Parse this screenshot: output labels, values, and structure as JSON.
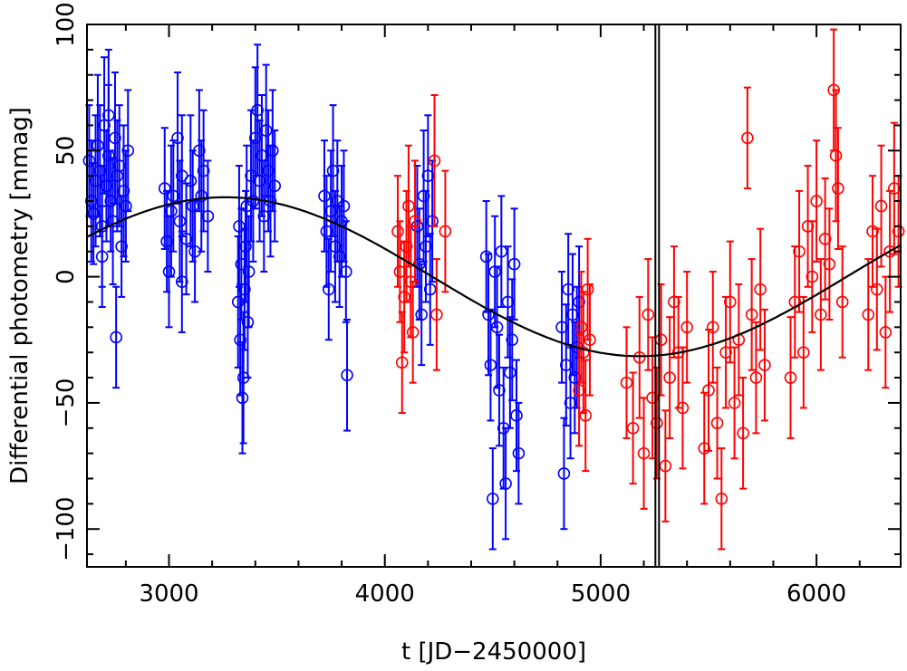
{
  "chart_data": {
    "type": "scatter",
    "title": "",
    "xlabel": "t [JD−2450000]",
    "ylabel": "Differential photometry [mmag]",
    "xlim": [
      2620,
      6390
    ],
    "ylim": [
      -115,
      100
    ],
    "x_ticks": [
      3000,
      4000,
      5000,
      6000
    ],
    "x_tick_labels": [
      "3000",
      "4000",
      "5000",
      "6000"
    ],
    "y_ticks": [
      -100,
      -50,
      0,
      50,
      100
    ],
    "y_tick_labels": [
      "−100",
      "−50",
      "0",
      "50",
      "100"
    ],
    "grid": false,
    "legend": "none",
    "colors": {
      "blue": "#0000ff",
      "red": "#ff0000",
      "fit": "#000000",
      "axes": "#000000"
    },
    "vertical_line_x": 5262,
    "fit_curve": {
      "description_points_x": [
        2620,
        2900,
        3260,
        3600,
        4000,
        4400,
        4800,
        5180,
        5500,
        5900,
        6390
      ],
      "description_points_y": [
        14,
        26,
        31,
        27,
        11,
        -9,
        -26,
        -31,
        -25,
        -8,
        14
      ]
    },
    "series": [
      {
        "color": "#0000ff",
        "points": [
          [
            2630,
            46,
            22
          ],
          [
            2640,
            30,
            24
          ],
          [
            2650,
            25,
            20
          ],
          [
            2660,
            38,
            26
          ],
          [
            2670,
            52,
            28
          ],
          [
            2680,
            42,
            26
          ],
          [
            2690,
            20,
            24
          ],
          [
            2700,
            60,
            27
          ],
          [
            2710,
            36,
            22
          ],
          [
            2720,
            48,
            28
          ],
          [
            2730,
            30,
            20
          ],
          [
            2740,
            22,
            25
          ],
          [
            2750,
            55,
            26
          ],
          [
            2760,
            40,
            22
          ],
          [
            2770,
            44,
            24
          ],
          [
            2780,
            12,
            20
          ],
          [
            2790,
            34,
            26
          ],
          [
            2800,
            28,
            22
          ],
          [
            2810,
            50,
            24
          ],
          [
            2755,
            -24,
            20
          ],
          [
            2720,
            64,
            26
          ],
          [
            2690,
            8,
            20
          ],
          [
            2980,
            35,
            24
          ],
          [
            2990,
            14,
            20
          ],
          [
            3000,
            2,
            22
          ],
          [
            3010,
            26,
            26
          ],
          [
            3020,
            32,
            22
          ],
          [
            3040,
            55,
            26
          ],
          [
            3050,
            22,
            24
          ],
          [
            3060,
            40,
            24
          ],
          [
            3080,
            15,
            22
          ],
          [
            3100,
            38,
            26
          ],
          [
            3110,
            28,
            22
          ],
          [
            3120,
            10,
            20
          ],
          [
            3140,
            50,
            24
          ],
          [
            3150,
            32,
            22
          ],
          [
            3160,
            42,
            24
          ],
          [
            3180,
            24,
            22
          ],
          [
            3060,
            -2,
            20
          ],
          [
            3320,
            -10,
            26
          ],
          [
            3325,
            20,
            24
          ],
          [
            3330,
            -25,
            22
          ],
          [
            3335,
            5,
            22
          ],
          [
            3340,
            -48,
            22
          ],
          [
            3345,
            -40,
            26
          ],
          [
            3350,
            -5,
            24
          ],
          [
            3355,
            12,
            22
          ],
          [
            3360,
            28,
            24
          ],
          [
            3365,
            -18,
            22
          ],
          [
            3370,
            2,
            22
          ],
          [
            3380,
            40,
            26
          ],
          [
            3390,
            30,
            24
          ],
          [
            3400,
            55,
            28
          ],
          [
            3410,
            66,
            26
          ],
          [
            3420,
            38,
            24
          ],
          [
            3430,
            48,
            24
          ],
          [
            3440,
            24,
            22
          ],
          [
            3450,
            58,
            26
          ],
          [
            3460,
            42,
            24
          ],
          [
            3470,
            30,
            22
          ],
          [
            3480,
            50,
            24
          ],
          [
            3490,
            36,
            22
          ],
          [
            3720,
            32,
            22
          ],
          [
            3730,
            18,
            22
          ],
          [
            3740,
            -5,
            20
          ],
          [
            3750,
            26,
            24
          ],
          [
            3760,
            42,
            26
          ],
          [
            3770,
            12,
            22
          ],
          [
            3780,
            30,
            24
          ],
          [
            3790,
            8,
            20
          ],
          [
            3800,
            22,
            22
          ],
          [
            3810,
            28,
            22
          ],
          [
            3820,
            2,
            20
          ],
          [
            3825,
            -39,
            22
          ],
          [
            4150,
            20,
            24
          ],
          [
            4160,
            5,
            22
          ],
          [
            4170,
            -15,
            20
          ],
          [
            4180,
            32,
            26
          ],
          [
            4190,
            12,
            22
          ],
          [
            4200,
            40,
            24
          ],
          [
            4210,
            -5,
            22
          ],
          [
            4220,
            22,
            24
          ],
          [
            4470,
            8,
            22
          ],
          [
            4480,
            -15,
            24
          ],
          [
            4490,
            -35,
            22
          ],
          [
            4500,
            -88,
            20
          ],
          [
            4510,
            2,
            22
          ],
          [
            4520,
            -20,
            24
          ],
          [
            4530,
            -45,
            22
          ],
          [
            4540,
            10,
            22
          ],
          [
            4550,
            -60,
            24
          ],
          [
            4560,
            -82,
            22
          ],
          [
            4570,
            -10,
            22
          ],
          [
            4580,
            -38,
            22
          ],
          [
            4590,
            -25,
            24
          ],
          [
            4600,
            5,
            22
          ],
          [
            4610,
            -55,
            22
          ],
          [
            4620,
            -70,
            20
          ],
          [
            4820,
            -20,
            22
          ],
          [
            4830,
            -78,
            22
          ],
          [
            4840,
            -35,
            24
          ],
          [
            4850,
            -5,
            22
          ],
          [
            4860,
            -50,
            22
          ],
          [
            4870,
            -15,
            24
          ],
          [
            4880,
            -40,
            22
          ],
          [
            4890,
            -28,
            24
          ],
          [
            4900,
            -10,
            22
          ]
        ]
      },
      {
        "color": "#ff0000",
        "points": [
          [
            4060,
            18,
            22
          ],
          [
            4070,
            2,
            20
          ],
          [
            4080,
            -34,
            20
          ],
          [
            4090,
            -8,
            22
          ],
          [
            4100,
            12,
            22
          ],
          [
            4110,
            28,
            24
          ],
          [
            4120,
            -2,
            22
          ],
          [
            4130,
            -22,
            20
          ],
          [
            4230,
            46,
            26
          ],
          [
            4240,
            -15,
            22
          ],
          [
            4280,
            18,
            24
          ],
          [
            4140,
            22,
            24
          ],
          [
            4900,
            -45,
            22
          ],
          [
            4910,
            -20,
            22
          ],
          [
            4920,
            -30,
            24
          ],
          [
            4930,
            -55,
            22
          ],
          [
            4940,
            -5,
            20
          ],
          [
            4950,
            -25,
            22
          ],
          [
            5120,
            -42,
            22
          ],
          [
            5150,
            -60,
            22
          ],
          [
            5180,
            -32,
            24
          ],
          [
            5200,
            -70,
            22
          ],
          [
            5220,
            -15,
            22
          ],
          [
            5240,
            -48,
            24
          ],
          [
            5260,
            -58,
            22
          ],
          [
            5280,
            -25,
            22
          ],
          [
            5300,
            -75,
            22
          ],
          [
            5320,
            -40,
            24
          ],
          [
            5340,
            -10,
            22
          ],
          [
            5360,
            -30,
            22
          ],
          [
            5380,
            -52,
            24
          ],
          [
            5400,
            -20,
            22
          ],
          [
            5480,
            -68,
            22
          ],
          [
            5500,
            -45,
            24
          ],
          [
            5520,
            -20,
            22
          ],
          [
            5540,
            -58,
            22
          ],
          [
            5560,
            -88,
            20
          ],
          [
            5580,
            -30,
            22
          ],
          [
            5600,
            -10,
            24
          ],
          [
            5620,
            -50,
            22
          ],
          [
            5640,
            -25,
            22
          ],
          [
            5660,
            -62,
            22
          ],
          [
            5680,
            55,
            20
          ],
          [
            5700,
            -15,
            22
          ],
          [
            5720,
            -40,
            22
          ],
          [
            5740,
            -5,
            24
          ],
          [
            5760,
            -35,
            22
          ],
          [
            5880,
            -40,
            24
          ],
          [
            5900,
            -10,
            22
          ],
          [
            5920,
            10,
            24
          ],
          [
            5940,
            -30,
            22
          ],
          [
            5960,
            20,
            24
          ],
          [
            5980,
            0,
            22
          ],
          [
            6000,
            30,
            24
          ],
          [
            6020,
            -15,
            22
          ],
          [
            6040,
            15,
            24
          ],
          [
            6060,
            5,
            22
          ],
          [
            6080,
            74,
            24
          ],
          [
            6090,
            48,
            26
          ],
          [
            6100,
            35,
            24
          ],
          [
            6120,
            -10,
            22
          ],
          [
            6240,
            -15,
            22
          ],
          [
            6260,
            18,
            22
          ],
          [
            6280,
            -5,
            24
          ],
          [
            6300,
            28,
            24
          ],
          [
            6320,
            -22,
            22
          ],
          [
            6340,
            10,
            24
          ],
          [
            6360,
            35,
            26
          ],
          [
            6380,
            18,
            22
          ]
        ]
      }
    ]
  }
}
